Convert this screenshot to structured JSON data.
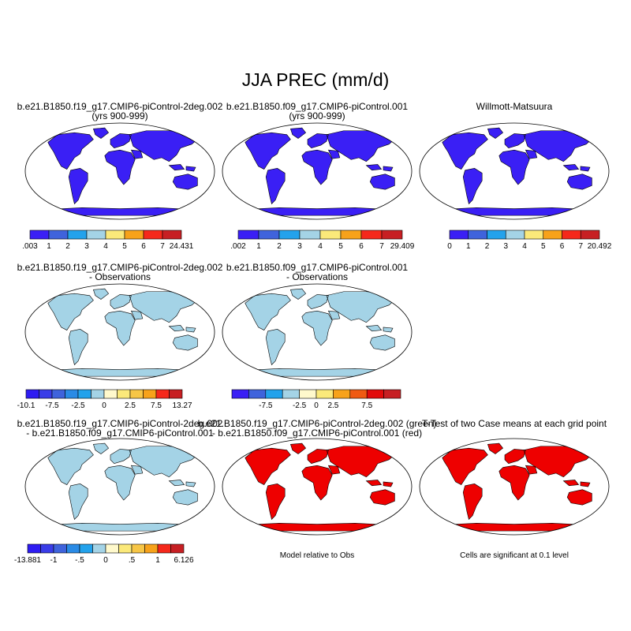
{
  "page_title": "JJA PREC (mm/d)",
  "colors": {
    "ocean": "#ffffff",
    "coastline": "#000000",
    "abs_scale": [
      "#3a1ff5",
      "#3f63dc",
      "#23a2ec",
      "#a4d3e6",
      "#fbe97a",
      "#f7a21a",
      "#f5281b",
      "#c71f23"
    ],
    "diff_scale_10": [
      "#3a1ff5",
      "#3f63dc",
      "#23a2ec",
      "#a4d3e6",
      "#fff9cc",
      "#fbe97a",
      "#f7a21a",
      "#f05a12",
      "#e20b0b",
      "#c71f23"
    ],
    "diff_scale_12": [
      "#2e1cf2",
      "#3a3de8",
      "#3f63dc",
      "#2a8be6",
      "#23a2ec",
      "#a4d3e6",
      "#fff9cc",
      "#fbe97a",
      "#f7c646",
      "#f7a21a",
      "#f5281b",
      "#c71f23"
    ],
    "sig_green": "#20e000",
    "sig_red": "#ee0000"
  },
  "chart_data": [
    {
      "type": "heatmap",
      "title_lines": [
        "b.e21.B1850.f19_g17.CMIP6-piControl-2deg.002",
        "(yrs 900-999)"
      ],
      "colorbar": {
        "labels": [
          ".003",
          "1",
          "2",
          "3",
          "4",
          "5",
          "6",
          "7",
          "24.431"
        ],
        "min": 0.003,
        "max": 24.431
      }
    },
    {
      "type": "heatmap",
      "title_lines": [
        "b.e21.B1850.f09_g17.CMIP6-piControl.001",
        "(yrs 900-999)"
      ],
      "colorbar": {
        "labels": [
          ".002",
          "1",
          "2",
          "3",
          "4",
          "5",
          "6",
          "7",
          "29.409"
        ],
        "min": 0.002,
        "max": 29.409
      }
    },
    {
      "type": "heatmap",
      "title_lines": [
        "Willmott-Matsuura"
      ],
      "colorbar": {
        "labels": [
          "0",
          "1",
          "2",
          "3",
          "4",
          "5",
          "6",
          "7",
          "20.492"
        ],
        "min": 0,
        "max": 20.492
      }
    },
    {
      "type": "heatmap",
      "title_lines": [
        "b.e21.B1850.f19_g17.CMIP6-piControl-2deg.002",
        "- Observations"
      ],
      "colorbar": {
        "labels": [
          "-10.1",
          "-7.5",
          "-2.5",
          "0",
          "2.5",
          "7.5",
          "13.27"
        ],
        "min": -10.1,
        "max": 13.27
      }
    },
    {
      "type": "heatmap",
      "title_lines": [
        "b.e21.B1850.f09_g17.CMIP6-piControl.001",
        "- Observations"
      ],
      "colorbar": {
        "labels": [
          "-7.5",
          "-2.5",
          "0",
          "2.5",
          "7.5"
        ]
      }
    },
    {
      "type": "heatmap",
      "title_lines": [
        "b.e21.B1850.f19_g17.CMIP6-piControl-2deg.002",
        "- b.e21.B1850.f09_g17.CMIP6-piControl.001"
      ],
      "colorbar": {
        "labels": [
          "-13.881",
          "-1",
          "-.5",
          "0",
          ".5",
          "1",
          "6.126"
        ],
        "min": -13.881,
        "max": 6.126
      }
    },
    {
      "type": "heatmap",
      "title_lines": [
        "b.e21.B1850.f19_g17.CMIP6-piControl-2deg.002 (green)",
        "- b.e21.B1850.f09_g17.CMIP6-piControl.001 (red)"
      ],
      "footnote": "Model relative to Obs",
      "legend": [
        {
          "name": "b.e21.B1850.f19_g17.CMIP6-piControl-2deg.002",
          "color": "green"
        },
        {
          "name": "b.e21.B1850.f09_g17.CMIP6-piControl.001",
          "color": "red"
        }
      ]
    },
    {
      "type": "heatmap",
      "title_lines": [
        "T-Test of two Case means at each grid point"
      ],
      "footnote": "Cells are significant at 0.1 level"
    }
  ]
}
